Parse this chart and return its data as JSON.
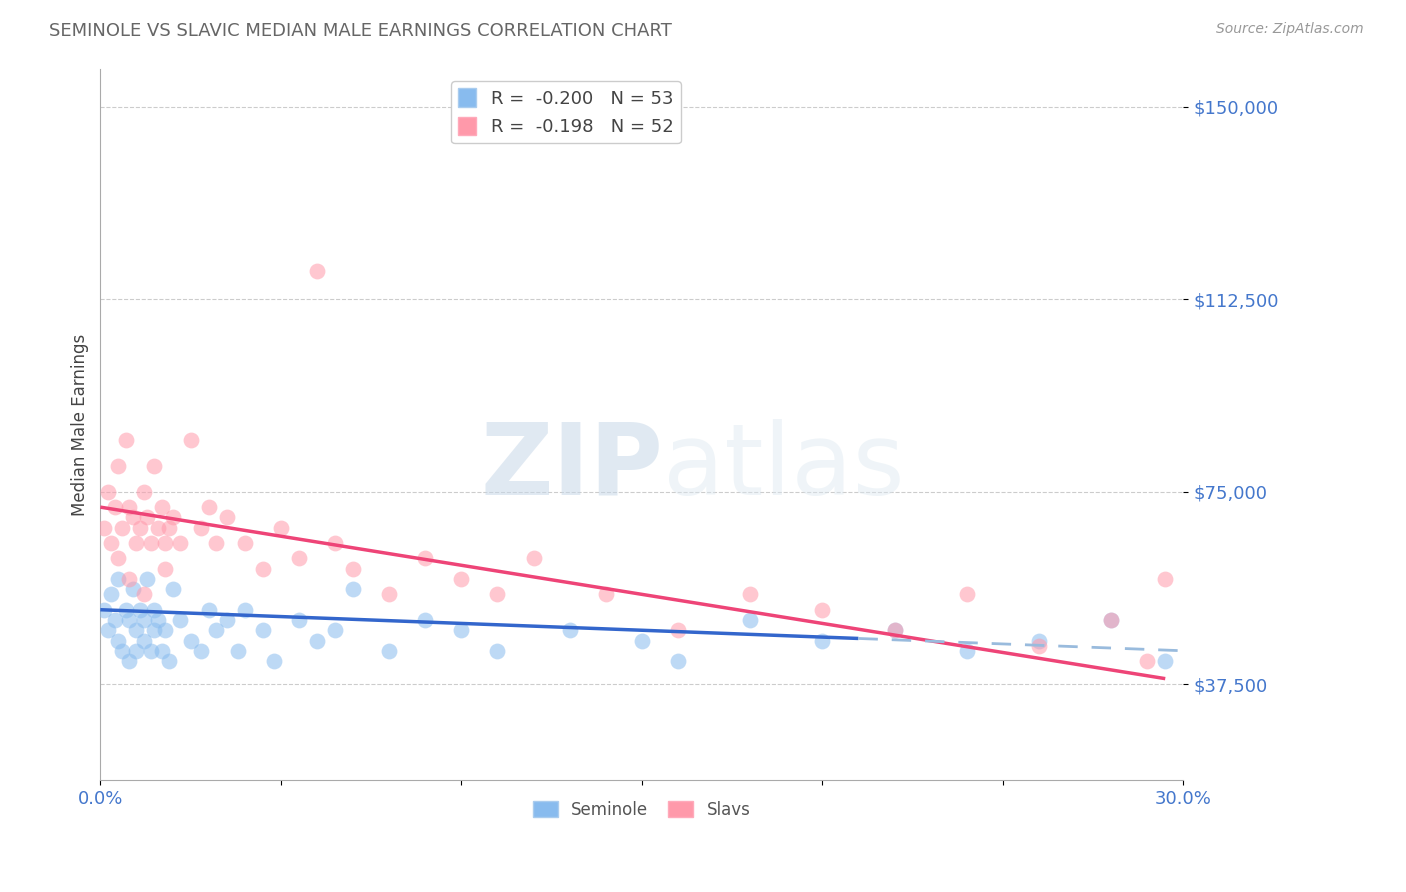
{
  "title": "SEMINOLE VS SLAVIC MEDIAN MALE EARNINGS CORRELATION CHART",
  "source": "Source: ZipAtlas.com",
  "ylabel": "Median Male Earnings",
  "xmin": 0.0,
  "xmax": 0.3,
  "ymin": 18750,
  "ymax": 157500,
  "yticks": [
    37500,
    75000,
    112500,
    150000
  ],
  "ytick_labels": [
    "$37,500",
    "$75,000",
    "$112,500",
    "$150,000"
  ],
  "xticks": [
    0.0,
    0.05,
    0.1,
    0.15,
    0.2,
    0.25,
    0.3
  ],
  "xtick_labels": [
    "0.0%",
    "",
    "",
    "",
    "",
    "",
    "30.0%"
  ],
  "seminole_label": "Seminole",
  "slavs_label": "Slavs",
  "blue_color": "#88bbee",
  "pink_color": "#ff99aa",
  "blue_line_color": "#3366cc",
  "pink_line_color": "#ee4477",
  "dash_color": "#99bbdd",
  "watermark_zip": "ZIP",
  "watermark_atlas": "atlas",
  "legend_r1": "R =  -0.200",
  "legend_n1": "N = 53",
  "legend_r2": "R =  -0.198",
  "legend_n2": "N = 52",
  "seminole_x": [
    0.001,
    0.002,
    0.003,
    0.004,
    0.005,
    0.005,
    0.006,
    0.007,
    0.008,
    0.008,
    0.009,
    0.01,
    0.01,
    0.011,
    0.012,
    0.012,
    0.013,
    0.014,
    0.015,
    0.015,
    0.016,
    0.017,
    0.018,
    0.019,
    0.02,
    0.022,
    0.025,
    0.028,
    0.03,
    0.032,
    0.035,
    0.038,
    0.04,
    0.045,
    0.048,
    0.055,
    0.06,
    0.065,
    0.07,
    0.08,
    0.09,
    0.1,
    0.11,
    0.13,
    0.15,
    0.16,
    0.18,
    0.2,
    0.22,
    0.24,
    0.26,
    0.28,
    0.295
  ],
  "seminole_y": [
    52000,
    48000,
    55000,
    50000,
    46000,
    58000,
    44000,
    52000,
    50000,
    42000,
    56000,
    48000,
    44000,
    52000,
    50000,
    46000,
    58000,
    44000,
    48000,
    52000,
    50000,
    44000,
    48000,
    42000,
    56000,
    50000,
    46000,
    44000,
    52000,
    48000,
    50000,
    44000,
    52000,
    48000,
    42000,
    50000,
    46000,
    48000,
    56000,
    44000,
    50000,
    48000,
    44000,
    48000,
    46000,
    42000,
    50000,
    46000,
    48000,
    44000,
    46000,
    50000,
    42000
  ],
  "slavs_x": [
    0.001,
    0.002,
    0.003,
    0.004,
    0.005,
    0.006,
    0.007,
    0.008,
    0.009,
    0.01,
    0.011,
    0.012,
    0.013,
    0.014,
    0.015,
    0.016,
    0.017,
    0.018,
    0.019,
    0.02,
    0.022,
    0.025,
    0.028,
    0.03,
    0.032,
    0.035,
    0.04,
    0.045,
    0.05,
    0.055,
    0.06,
    0.065,
    0.07,
    0.08,
    0.09,
    0.1,
    0.11,
    0.12,
    0.14,
    0.16,
    0.18,
    0.2,
    0.22,
    0.24,
    0.26,
    0.28,
    0.29,
    0.295,
    0.005,
    0.008,
    0.012,
    0.018
  ],
  "slavs_y": [
    68000,
    75000,
    65000,
    72000,
    80000,
    68000,
    85000,
    72000,
    70000,
    65000,
    68000,
    75000,
    70000,
    65000,
    80000,
    68000,
    72000,
    65000,
    68000,
    70000,
    65000,
    85000,
    68000,
    72000,
    65000,
    70000,
    65000,
    60000,
    68000,
    62000,
    118000,
    65000,
    60000,
    55000,
    62000,
    58000,
    55000,
    62000,
    55000,
    48000,
    55000,
    52000,
    48000,
    55000,
    45000,
    50000,
    42000,
    58000,
    62000,
    58000,
    55000,
    60000
  ],
  "slav_line_x_start": 0.0,
  "slav_line_x_end": 0.295,
  "sem_line_x_solid_end": 0.21,
  "sem_line_x_dash_end": 0.3
}
